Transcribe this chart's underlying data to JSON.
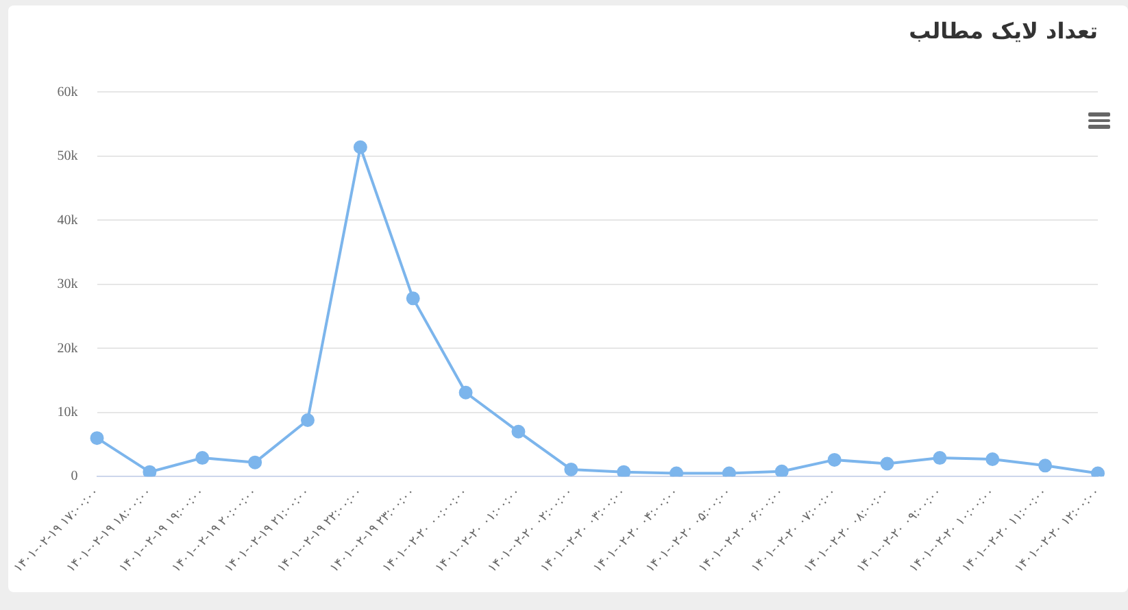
{
  "chart_data": {
    "type": "line",
    "title": "تعداد لایک مطالب",
    "categories": [
      "۱۴۰۱-۰۲-۱۹ ۱۷:۰۰:۰۰",
      "۱۴۰۱-۰۲-۱۹ ۱۸:۰۰:۰۰",
      "۱۴۰۱-۰۲-۱۹ ۱۹:۰۰:۰۰",
      "۱۴۰۱-۰۲-۱۹ ۲۰:۰۰:۰۰",
      "۱۴۰۱-۰۲-۱۹ ۲۱:۰۰:۰۰",
      "۱۴۰۱-۰۲-۱۹ ۲۲:۰۰:۰۰",
      "۱۴۰۱-۰۲-۱۹ ۲۳:۰۰:۰۰",
      "۱۴۰۱-۰۲-۲۰ ۰۰:۰۰:۰۰",
      "۱۴۰۱-۰۲-۲۰ ۰۱:۰۰:۰۰",
      "۱۴۰۱-۰۲-۲۰ ۰۲:۰۰:۰۰",
      "۱۴۰۱-۰۲-۲۰ ۰۳:۰۰:۰۰",
      "۱۴۰۱-۰۲-۲۰ ۰۴:۰۰:۰۰",
      "۱۴۰۱-۰۲-۲۰ ۰۵:۰۰:۰۰",
      "۱۴۰۱-۰۲-۲۰ ۰۶:۰۰:۰۰",
      "۱۴۰۱-۰۲-۲۰ ۰۷:۰۰:۰۰",
      "۱۴۰۱-۰۲-۲۰ ۰۸:۰۰:۰۰",
      "۱۴۰۱-۰۲-۲۰ ۰۹:۰۰:۰۰",
      "۱۴۰۱-۰۲-۲۰ ۱۰:۰۰:۰۰",
      "۱۴۰۱-۰۲-۲۰ ۱۱:۰۰:۰۰",
      "۱۴۰۱-۰۲-۲۰ ۱۲:۰۰:۰۰"
    ],
    "series": [
      {
        "color": "#7cb5ec",
        "values": [
          6000,
          700,
          2900,
          2200,
          8800,
          51400,
          27800,
          13100,
          7000,
          1100,
          700,
          500,
          500,
          800,
          2600,
          2000,
          2900,
          2700,
          1700,
          500
        ]
      }
    ],
    "ylim": [
      0,
      60000
    ],
    "yticks": [
      {
        "value": 0,
        "label": "0"
      },
      {
        "value": 10000,
        "label": "10k"
      },
      {
        "value": 20000,
        "label": "20k"
      },
      {
        "value": 30000,
        "label": "30k"
      },
      {
        "value": 40000,
        "label": "40k"
      },
      {
        "value": 50000,
        "label": "50k"
      },
      {
        "value": 60000,
        "label": "60k"
      }
    ],
    "grid": "y",
    "legend": false,
    "marker": "circle",
    "line_style": "solid"
  }
}
